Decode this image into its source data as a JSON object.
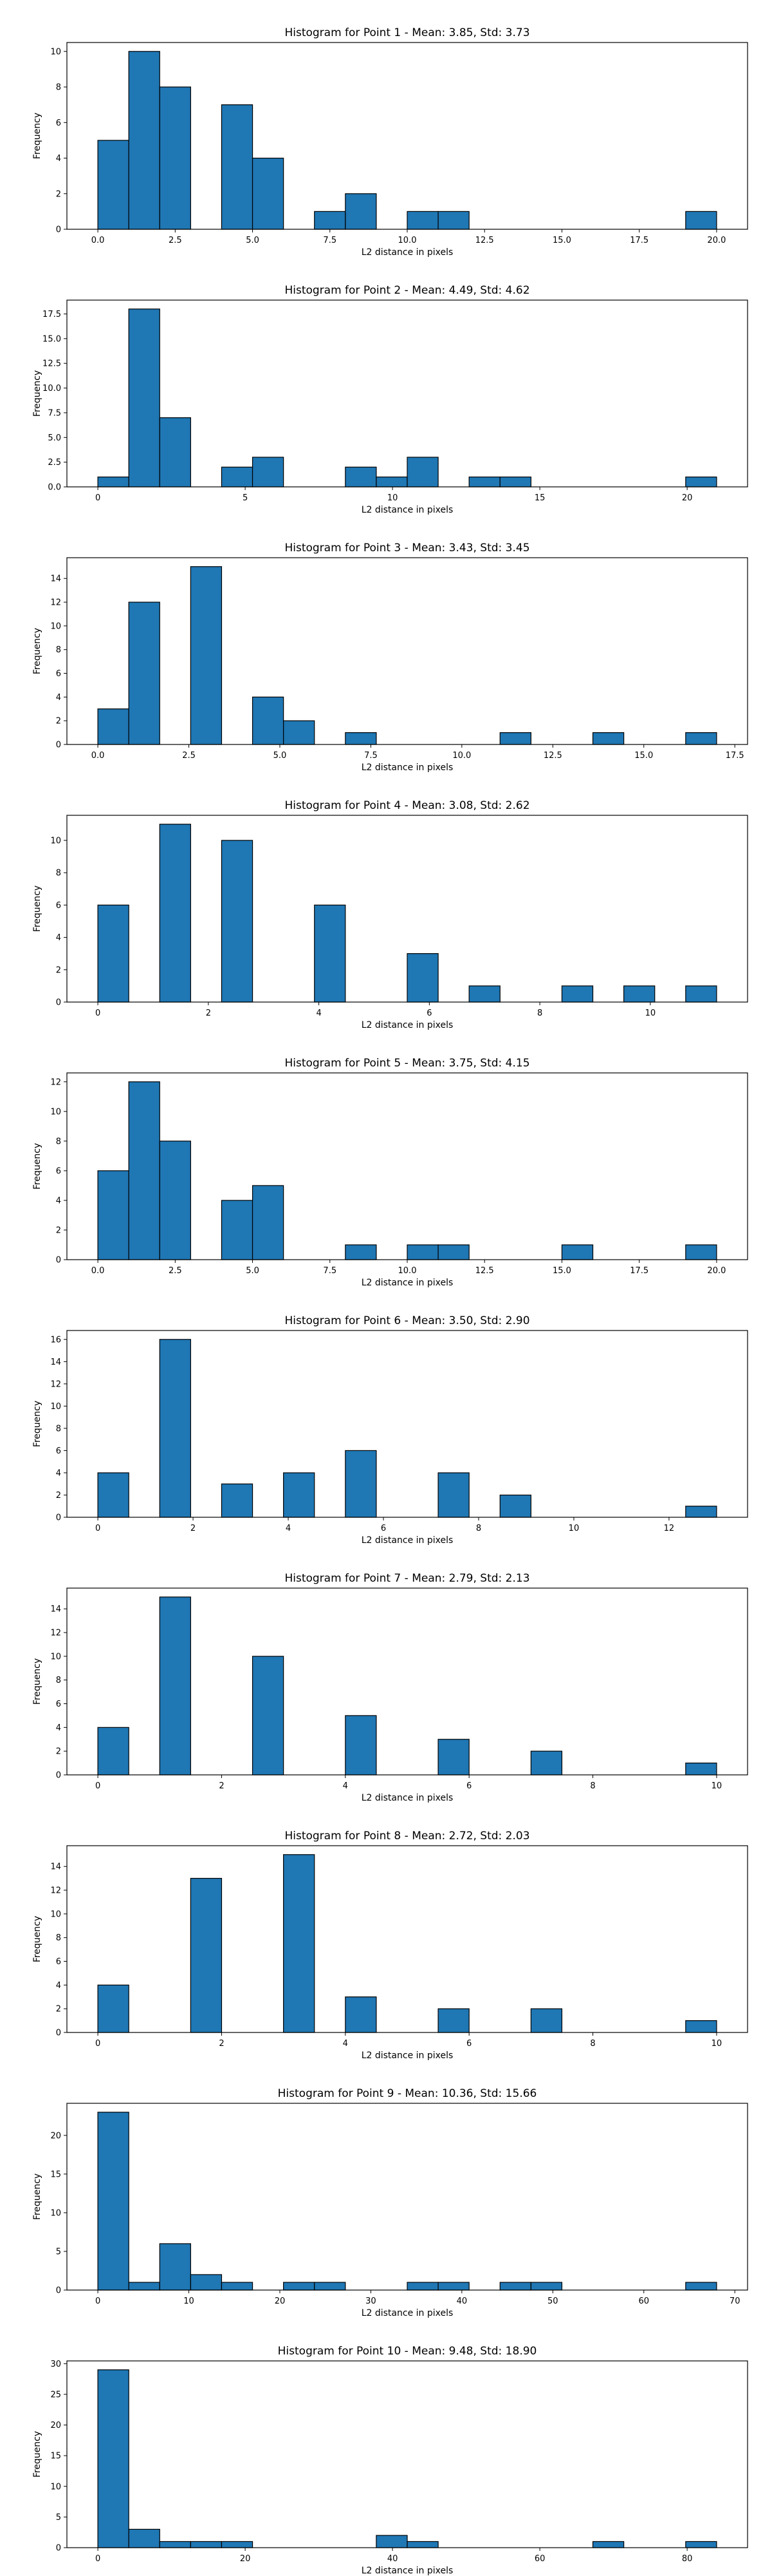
{
  "colors": {
    "bar_fill": "#1f77b4",
    "bar_edge": "#000000",
    "axis": "#000000",
    "background": "#ffffff"
  },
  "chart_data": [
    {
      "type": "bar",
      "title": "Histogram for Point 1 - Mean: 3.85, Std: 3.73",
      "xlabel": "L2 distance in pixels",
      "ylabel": "Frequency",
      "xlim": [
        -1.0,
        21.0
      ],
      "ylim": [
        0,
        10.5
      ],
      "xticks": [
        "0.0",
        "2.5",
        "5.0",
        "7.5",
        "10.0",
        "12.5",
        "15.0",
        "17.5",
        "20.0"
      ],
      "xtick_values": [
        0,
        2.5,
        5,
        7.5,
        10,
        12.5,
        15,
        17.5,
        20
      ],
      "yticks": [
        "0",
        "2",
        "4",
        "6",
        "8",
        "10"
      ],
      "ytick_values": [
        0,
        2,
        4,
        6,
        8,
        10
      ],
      "bin_start": 0.0,
      "bin_width": 1.0,
      "values": [
        5,
        10,
        8,
        0,
        7,
        4,
        0,
        1,
        2,
        0,
        1,
        1,
        0,
        0,
        0,
        0,
        0,
        0,
        0,
        1
      ],
      "grid": false
    },
    {
      "type": "bar",
      "title": "Histogram for Point 2 - Mean: 4.49, Std: 4.62",
      "xlabel": "L2 distance in pixels",
      "ylabel": "Frequency",
      "xlim": [
        -1.05,
        22.05
      ],
      "ylim": [
        0,
        18.9
      ],
      "xticks": [
        "0",
        "5",
        "10",
        "15",
        "20"
      ],
      "xtick_values": [
        0,
        5,
        10,
        15,
        20
      ],
      "yticks": [
        "0.0",
        "2.5",
        "5.0",
        "7.5",
        "10.0",
        "12.5",
        "15.0",
        "17.5"
      ],
      "ytick_values": [
        0,
        2.5,
        5,
        7.5,
        10,
        12.5,
        15,
        17.5
      ],
      "bin_start": 0.0,
      "bin_width": 1.05,
      "values": [
        1,
        18,
        7,
        0,
        2,
        3,
        0,
        0,
        2,
        1,
        3,
        0,
        1,
        1,
        0,
        0,
        0,
        0,
        0,
        1
      ],
      "grid": false
    },
    {
      "type": "bar",
      "title": "Histogram for Point 3 - Mean: 3.43, Std: 3.45",
      "xlabel": "L2 distance in pixels",
      "ylabel": "Frequency",
      "xlim": [
        -0.85,
        17.85
      ],
      "ylim": [
        0,
        15.75
      ],
      "xticks": [
        "0.0",
        "2.5",
        "5.0",
        "7.5",
        "10.0",
        "12.5",
        "15.0",
        "17.5"
      ],
      "xtick_values": [
        0,
        2.5,
        5,
        7.5,
        10,
        12.5,
        15,
        17.5
      ],
      "yticks": [
        "0",
        "2",
        "4",
        "6",
        "8",
        "10",
        "12",
        "14"
      ],
      "ytick_values": [
        0,
        2,
        4,
        6,
        8,
        10,
        12,
        14
      ],
      "bin_start": 0.0,
      "bin_width": 0.85,
      "values": [
        3,
        12,
        0,
        15,
        0,
        4,
        2,
        0,
        1,
        0,
        0,
        0,
        0,
        1,
        0,
        0,
        1,
        0,
        0,
        1
      ],
      "grid": false
    },
    {
      "type": "bar",
      "title": "Histogram for Point 4 - Mean: 3.08, Std: 2.62",
      "xlabel": "L2 distance in pixels",
      "ylabel": "Frequency",
      "xlim": [
        -0.56,
        11.76
      ],
      "ylim": [
        0,
        11.55
      ],
      "xticks": [
        "0",
        "2",
        "4",
        "6",
        "8",
        "10"
      ],
      "xtick_values": [
        0,
        2,
        4,
        6,
        8,
        10
      ],
      "yticks": [
        "0",
        "2",
        "4",
        "6",
        "8",
        "10"
      ],
      "ytick_values": [
        0,
        2,
        4,
        6,
        8,
        10
      ],
      "bin_start": 0.0,
      "bin_width": 0.56,
      "values": [
        6,
        0,
        11,
        0,
        10,
        0,
        0,
        6,
        0,
        0,
        3,
        0,
        1,
        0,
        0,
        1,
        0,
        1,
        0,
        1
      ],
      "grid": false
    },
    {
      "type": "bar",
      "title": "Histogram for Point 5 - Mean: 3.75, Std: 4.15",
      "xlabel": "L2 distance in pixels",
      "ylabel": "Frequency",
      "xlim": [
        -1.0,
        21.0
      ],
      "ylim": [
        0,
        12.6
      ],
      "xticks": [
        "0.0",
        "2.5",
        "5.0",
        "7.5",
        "10.0",
        "12.5",
        "15.0",
        "17.5",
        "20.0"
      ],
      "xtick_values": [
        0,
        2.5,
        5,
        7.5,
        10,
        12.5,
        15,
        17.5,
        20
      ],
      "yticks": [
        "0",
        "2",
        "4",
        "6",
        "8",
        "10",
        "12"
      ],
      "ytick_values": [
        0,
        2,
        4,
        6,
        8,
        10,
        12
      ],
      "bin_start": 0.0,
      "bin_width": 1.0,
      "values": [
        6,
        12,
        8,
        0,
        4,
        5,
        0,
        0,
        1,
        0,
        1,
        1,
        0,
        0,
        0,
        1,
        0,
        0,
        0,
        1
      ],
      "grid": false
    },
    {
      "type": "bar",
      "title": "Histogram for Point 6 - Mean: 3.50, Std: 2.90",
      "xlabel": "L2 distance in pixels",
      "ylabel": "Frequency",
      "xlim": [
        -0.65,
        13.65
      ],
      "ylim": [
        0,
        16.8
      ],
      "xticks": [
        "0",
        "2",
        "4",
        "6",
        "8",
        "10",
        "12"
      ],
      "xtick_values": [
        0,
        2,
        4,
        6,
        8,
        10,
        12
      ],
      "yticks": [
        "0",
        "2",
        "4",
        "6",
        "8",
        "10",
        "12",
        "14",
        "16"
      ],
      "ytick_values": [
        0,
        2,
        4,
        6,
        8,
        10,
        12,
        14,
        16
      ],
      "bin_start": 0.0,
      "bin_width": 0.65,
      "values": [
        4,
        0,
        16,
        0,
        3,
        0,
        4,
        0,
        6,
        0,
        0,
        4,
        0,
        2,
        0,
        0,
        0,
        0,
        0,
        1
      ],
      "grid": false
    },
    {
      "type": "bar",
      "title": "Histogram for Point 7 - Mean: 2.79, Std: 2.13",
      "xlabel": "L2 distance in pixels",
      "ylabel": "Frequency",
      "xlim": [
        -0.5,
        10.5
      ],
      "ylim": [
        0,
        15.75
      ],
      "xticks": [
        "0",
        "2",
        "4",
        "6",
        "8",
        "10"
      ],
      "xtick_values": [
        0,
        2,
        4,
        6,
        8,
        10
      ],
      "yticks": [
        "0",
        "2",
        "4",
        "6",
        "8",
        "10",
        "12",
        "14"
      ],
      "ytick_values": [
        0,
        2,
        4,
        6,
        8,
        10,
        12,
        14
      ],
      "bin_start": 0.0,
      "bin_width": 0.5,
      "values": [
        4,
        0,
        15,
        0,
        0,
        10,
        0,
        0,
        5,
        0,
        0,
        3,
        0,
        0,
        2,
        0,
        0,
        0,
        0,
        1
      ],
      "grid": false
    },
    {
      "type": "bar",
      "title": "Histogram for Point 8 - Mean: 2.72, Std: 2.03",
      "xlabel": "L2 distance in pixels",
      "ylabel": "Frequency",
      "xlim": [
        -0.5,
        10.5
      ],
      "ylim": [
        0,
        15.75
      ],
      "xticks": [
        "0",
        "2",
        "4",
        "6",
        "8",
        "10"
      ],
      "xtick_values": [
        0,
        2,
        4,
        6,
        8,
        10
      ],
      "yticks": [
        "0",
        "2",
        "4",
        "6",
        "8",
        "10",
        "12",
        "14"
      ],
      "ytick_values": [
        0,
        2,
        4,
        6,
        8,
        10,
        12,
        14
      ],
      "bin_start": 0.0,
      "bin_width": 0.5,
      "values": [
        4,
        0,
        0,
        13,
        0,
        0,
        15,
        0,
        3,
        0,
        0,
        2,
        0,
        0,
        2,
        0,
        0,
        0,
        0,
        1
      ],
      "grid": false
    },
    {
      "type": "bar",
      "title": "Histogram for Point 9 - Mean: 10.36, Std: 15.66",
      "xlabel": "L2 distance in pixels",
      "ylabel": "Frequency",
      "xlim": [
        -3.4,
        71.4
      ],
      "ylim": [
        0,
        24.15
      ],
      "xticks": [
        "0",
        "10",
        "20",
        "30",
        "40",
        "50",
        "60",
        "70"
      ],
      "xtick_values": [
        0,
        10,
        20,
        30,
        40,
        50,
        60,
        70
      ],
      "yticks": [
        "0",
        "5",
        "10",
        "15",
        "20"
      ],
      "ytick_values": [
        0,
        5,
        10,
        15,
        20
      ],
      "bin_start": 0.0,
      "bin_width": 3.4,
      "values": [
        23,
        1,
        6,
        2,
        1,
        0,
        1,
        1,
        0,
        0,
        1,
        1,
        0,
        1,
        1,
        0,
        0,
        0,
        0,
        1
      ],
      "grid": false
    },
    {
      "type": "bar",
      "title": "Histogram for Point 10 - Mean: 9.48, Std: 18.90",
      "xlabel": "L2 distance in pixels",
      "ylabel": "Frequency",
      "xlim": [
        -4.2,
        88.2
      ],
      "ylim": [
        0,
        30.45
      ],
      "xticks": [
        "0",
        "20",
        "40",
        "60",
        "80"
      ],
      "xtick_values": [
        0,
        20,
        40,
        60,
        80
      ],
      "yticks": [
        "0",
        "5",
        "10",
        "15",
        "20",
        "25",
        "30"
      ],
      "ytick_values": [
        0,
        5,
        10,
        15,
        20,
        25,
        30
      ],
      "bin_start": 0.0,
      "bin_width": 4.2,
      "values": [
        29,
        3,
        1,
        1,
        1,
        0,
        0,
        0,
        0,
        2,
        1,
        0,
        0,
        0,
        0,
        0,
        1,
        0,
        0,
        1
      ],
      "grid": false
    }
  ]
}
